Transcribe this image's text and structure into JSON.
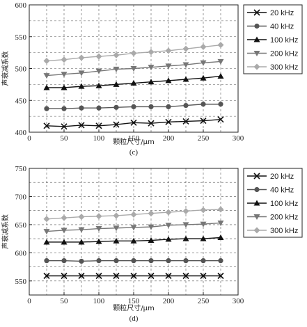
{
  "chart_data": [
    {
      "type": "line",
      "caption": "(c)",
      "xlabel": "颗粒尺寸/μm",
      "ylabel": "声衰减系数",
      "xlim": [
        0,
        300
      ],
      "ylim": [
        400,
        600
      ],
      "xticks": [
        0,
        50,
        100,
        150,
        200,
        250,
        300
      ],
      "yticks": [
        400,
        450,
        500,
        550,
        600
      ],
      "grid": true,
      "legend_position": "right",
      "x": [
        25,
        50,
        75,
        100,
        125,
        150,
        175,
        200,
        225,
        250,
        275
      ],
      "series": [
        {
          "name": "20 kHz",
          "marker": "x",
          "color": "#111111",
          "values": [
            410,
            409,
            411,
            410,
            412,
            415,
            414,
            416,
            417,
            418,
            420
          ]
        },
        {
          "name": "40 kHz",
          "marker": "circle",
          "color": "#555555",
          "values": [
            437,
            437,
            438,
            438,
            439,
            440,
            440,
            440,
            442,
            444,
            444
          ]
        },
        {
          "name": "100 kHz",
          "marker": "triangle-up",
          "color": "#111111",
          "values": [
            470,
            470,
            472,
            473,
            475,
            477,
            479,
            481,
            483,
            485,
            488
          ]
        },
        {
          "name": "200 kHz",
          "marker": "triangle-down",
          "color": "#777777",
          "values": [
            489,
            491,
            493,
            496,
            499,
            500,
            502,
            504,
            506,
            509,
            511
          ]
        },
        {
          "name": "300 kHz",
          "marker": "diamond",
          "color": "#aaaaaa",
          "values": [
            512,
            514,
            517,
            519,
            521,
            524,
            526,
            528,
            531,
            534,
            537
          ]
        }
      ]
    },
    {
      "type": "line",
      "caption": "(d)",
      "xlabel": "颗粒尺寸/μm",
      "ylabel": "声衰减系数",
      "xlim": [
        0,
        300
      ],
      "ylim": [
        525,
        750
      ],
      "xticks": [
        0,
        50,
        100,
        150,
        200,
        250,
        300
      ],
      "yticks": [
        550,
        600,
        650,
        700,
        750
      ],
      "grid": true,
      "legend_position": "right",
      "x": [
        25,
        50,
        75,
        100,
        125,
        150,
        175,
        200,
        225,
        250,
        275
      ],
      "series": [
        {
          "name": "20 kHz",
          "marker": "x",
          "color": "#111111",
          "values": [
            559,
            559,
            559,
            559,
            559,
            559,
            559,
            559,
            559,
            559,
            559
          ]
        },
        {
          "name": "40 kHz",
          "marker": "circle",
          "color": "#555555",
          "values": [
            586,
            586,
            585,
            586,
            586,
            586,
            586,
            586,
            586,
            586,
            586
          ]
        },
        {
          "name": "100 kHz",
          "marker": "triangle-up",
          "color": "#111111",
          "values": [
            619,
            619,
            619,
            620,
            621,
            621,
            622,
            624,
            625,
            625,
            627
          ]
        },
        {
          "name": "200 kHz",
          "marker": "triangle-down",
          "color": "#777777",
          "values": [
            638,
            640,
            641,
            643,
            644,
            645,
            646,
            649,
            650,
            651,
            653
          ]
        },
        {
          "name": "300 kHz",
          "marker": "diamond",
          "color": "#aaaaaa",
          "values": [
            660,
            662,
            664,
            665,
            666,
            668,
            670,
            672,
            674,
            676,
            677
          ]
        }
      ]
    }
  ]
}
